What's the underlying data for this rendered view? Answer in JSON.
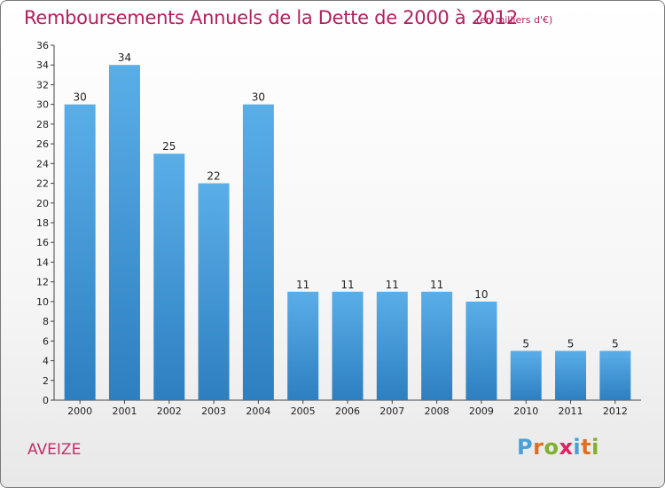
{
  "header": {
    "title": "Remboursements Annuels de la Dette de 2000 à 2012",
    "subtitle": "(en milliers d'€)"
  },
  "footer": {
    "commune": "AVEIZE",
    "logo": "Proxiti"
  },
  "colors": {
    "bar_top": "#5aaee8",
    "bar_bottom": "#2d7fc0",
    "title": "#b02060",
    "logo_letters": [
      "#4aa0d8",
      "#e07020",
      "#80b030",
      "#e02060",
      "#4aa0d8",
      "#e07020",
      "#80b030"
    ]
  },
  "chart_data": {
    "type": "bar",
    "title": "Remboursements Annuels de la Dette de 2000 à 2012",
    "categories": [
      "2000",
      "2001",
      "2002",
      "2003",
      "2004",
      "2005",
      "2006",
      "2007",
      "2008",
      "2009",
      "2010",
      "2011",
      "2012"
    ],
    "values": [
      30,
      34,
      25,
      22,
      30,
      11,
      11,
      11,
      11,
      10,
      5,
      5,
      5
    ],
    "ylim": [
      0,
      36
    ],
    "ytick_step": 2,
    "yticks": [
      "0",
      "2",
      "4",
      "6",
      "8",
      "10",
      "12",
      "14",
      "16",
      "18",
      "20",
      "22",
      "24",
      "26",
      "28",
      "30",
      "32",
      "34",
      "36"
    ],
    "grid": false,
    "show_value_labels": true
  }
}
